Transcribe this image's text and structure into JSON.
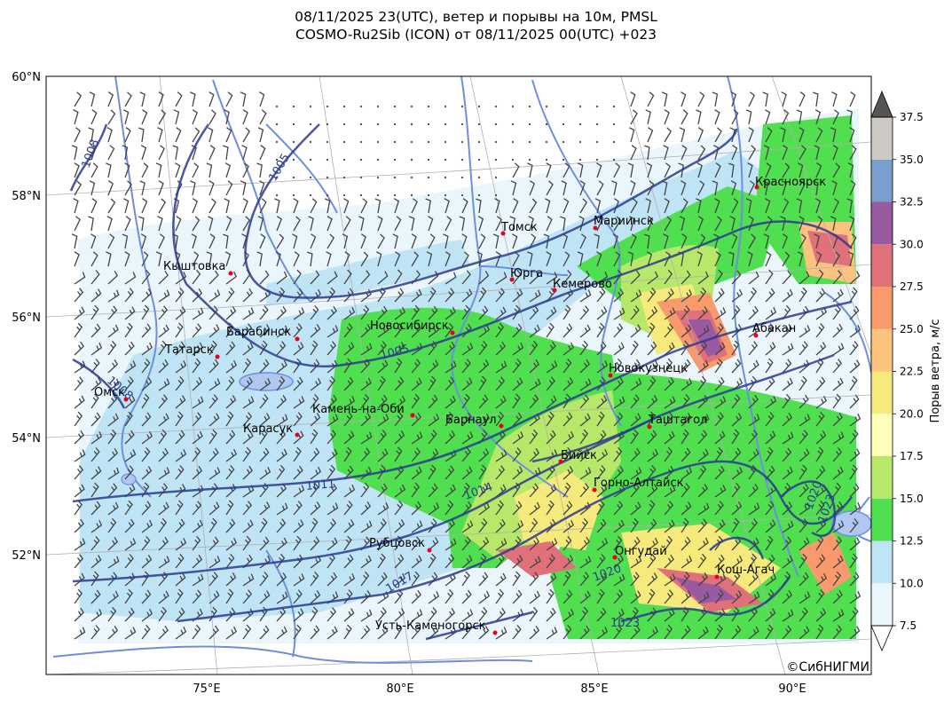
{
  "title": {
    "line1": "08/11/2025 23(UTC), ветер и порывы на 10м, PMSL",
    "line2": "COSMO-Ru2Sib (ICON) от 08/11/2025 00(UTC) +023"
  },
  "credit": "©СибНИГМИ",
  "lat_labels": [
    "60°N",
    "58°N",
    "56°N",
    "54°N",
    "52°N"
  ],
  "lon_labels": [
    "75°E",
    "80°E",
    "85°E",
    "90°E"
  ],
  "colorbar": {
    "title": "Порыв ветра, м/с",
    "ticks": [
      "7.5",
      "10.0",
      "12.5",
      "15.0",
      "17.5",
      "20.0",
      "22.5",
      "25.0",
      "27.5",
      "30.0",
      "32.5",
      "35.0",
      "37.5"
    ],
    "colors": [
      "#eaf6fc",
      "#bfe4f6",
      "#4fdf4f",
      "#b8e86a",
      "#ffffb8",
      "#f7ea7c",
      "#fcc37e",
      "#f89a6c",
      "#e07079",
      "#9a5aa2",
      "#799fcf",
      "#cdcac5"
    ],
    "over_color": "#555555",
    "under_color": "#ffffff"
  },
  "cities": [
    {
      "name": "Красноярск"
    },
    {
      "name": "Томск"
    },
    {
      "name": "Мариинск"
    },
    {
      "name": "Кыштовка"
    },
    {
      "name": "Юрга"
    },
    {
      "name": "Кемерово"
    },
    {
      "name": "Барабинск"
    },
    {
      "name": "Новосибирск"
    },
    {
      "name": "Абакан"
    },
    {
      "name": "Татарск"
    },
    {
      "name": "Новокузнецк"
    },
    {
      "name": "Омск"
    },
    {
      "name": "Камень-на-Оби"
    },
    {
      "name": "Барнаул"
    },
    {
      "name": "Таштагол"
    },
    {
      "name": "Карасук"
    },
    {
      "name": "Бийск"
    },
    {
      "name": "Горно-Алтайск"
    },
    {
      "name": "Рубцовск"
    },
    {
      "name": "Онгудай"
    },
    {
      "name": "Кош-Агач"
    },
    {
      "name": "Усть-Каменогорск"
    }
  ],
  "isobar_labels": [
    "1008",
    "1005",
    "1005",
    "1008",
    "1011",
    "1014",
    "1017",
    "1023",
    "1020",
    "1023",
    "1020"
  ],
  "colors": {
    "isobar": "#2b3a8f",
    "river": "#6d8fe0",
    "city_marker": "#e8001c",
    "grid": "#b0b0b0",
    "barb": "#444444"
  }
}
